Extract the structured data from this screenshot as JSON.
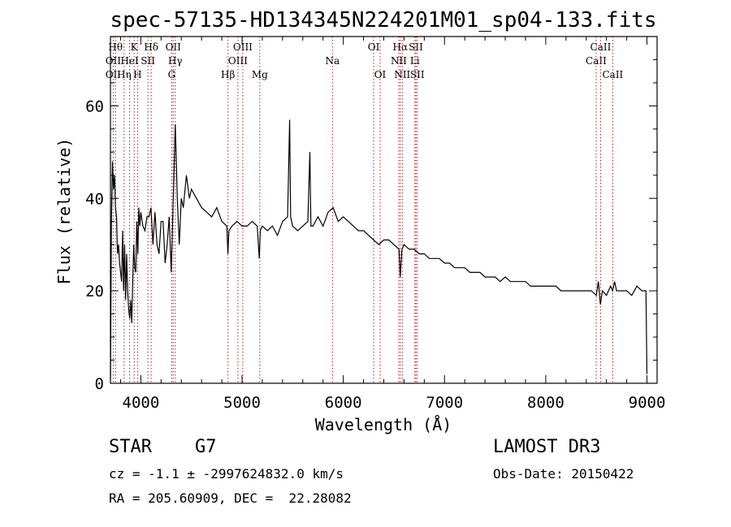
{
  "chart_data": {
    "type": "line",
    "title": "spec-57135-HD134345N224201M01_sp04-133.fits",
    "xlabel": "Wavelength (Å)",
    "ylabel": "Flux (relative)",
    "xlim": [
      3700,
      9100
    ],
    "ylim": [
      0,
      75
    ],
    "xticks": [
      4000,
      5000,
      6000,
      7000,
      8000,
      9000
    ],
    "yticks": [
      0,
      20,
      40,
      60
    ],
    "series": [
      {
        "name": "flux",
        "x": [
          3700,
          3710,
          3720,
          3730,
          3740,
          3750,
          3760,
          3770,
          3780,
          3790,
          3800,
          3810,
          3820,
          3830,
          3840,
          3850,
          3860,
          3870,
          3880,
          3890,
          3900,
          3910,
          3920,
          3930,
          3940,
          3950,
          3960,
          3970,
          3980,
          3990,
          4000,
          4020,
          4040,
          4060,
          4080,
          4100,
          4120,
          4140,
          4160,
          4180,
          4200,
          4220,
          4240,
          4260,
          4280,
          4300,
          4320,
          4340,
          4360,
          4380,
          4400,
          4420,
          4450,
          4480,
          4500,
          4550,
          4600,
          4650,
          4700,
          4750,
          4800,
          4850,
          4860,
          4870,
          4900,
          4950,
          5000,
          5050,
          5100,
          5150,
          5170,
          5180,
          5200,
          5250,
          5300,
          5350,
          5400,
          5450,
          5470,
          5480,
          5500,
          5550,
          5600,
          5650,
          5670,
          5680,
          5700,
          5750,
          5800,
          5850,
          5900,
          5950,
          6000,
          6050,
          6100,
          6150,
          6200,
          6250,
          6300,
          6350,
          6400,
          6450,
          6500,
          6550,
          6562,
          6580,
          6600,
          6650,
          6700,
          6750,
          6800,
          6850,
          6900,
          6950,
          7000,
          7050,
          7100,
          7150,
          7200,
          7250,
          7300,
          7350,
          7400,
          7450,
          7500,
          7550,
          7600,
          7650,
          7700,
          7750,
          7800,
          7850,
          7900,
          7950,
          8000,
          8050,
          8100,
          8150,
          8200,
          8250,
          8300,
          8350,
          8400,
          8450,
          8500,
          8520,
          8540,
          8560,
          8600,
          8640,
          8660,
          8680,
          8700,
          8750,
          8800,
          8850,
          8900,
          8950,
          8990,
          9000
        ],
        "y": [
          1,
          35,
          48,
          42,
          45,
          38,
          36,
          28,
          30,
          26,
          24,
          22,
          33,
          20,
          30,
          18,
          28,
          20,
          16,
          14,
          18,
          13,
          22,
          30,
          25,
          24,
          35,
          28,
          38,
          34,
          37,
          34,
          33,
          36,
          36,
          38,
          30,
          37,
          30,
          28,
          35,
          35,
          26,
          30,
          36,
          24,
          40,
          56,
          40,
          30,
          40,
          38,
          45,
          40,
          42,
          40,
          38,
          37,
          36,
          38,
          35,
          34,
          28,
          33,
          34,
          35,
          34,
          34,
          35,
          34,
          27,
          33,
          34,
          33,
          34,
          32,
          35,
          36,
          57,
          36,
          34,
          33,
          34,
          35,
          50,
          34,
          34,
          36,
          34,
          37,
          38,
          35,
          36,
          35,
          34,
          33,
          33,
          32,
          31,
          30,
          31,
          31,
          30,
          29,
          23,
          29,
          30,
          29,
          29,
          28,
          28,
          27,
          27,
          27,
          26,
          26,
          25,
          25,
          25,
          24,
          24,
          24,
          23,
          23,
          23,
          22,
          23,
          22,
          22,
          22,
          22,
          21,
          21,
          21,
          21,
          21,
          21,
          20,
          20,
          20,
          20,
          20,
          20,
          20,
          19,
          22,
          17,
          20,
          19,
          21,
          20,
          22,
          20,
          20,
          20,
          19,
          21,
          20,
          20,
          2
        ]
      }
    ],
    "lines": [
      {
        "wl": 3750,
        "label": "Hθ",
        "row": 1
      },
      {
        "wl": 3727,
        "label": "OII",
        "row": 2
      },
      {
        "wl": 3727,
        "label": "OII",
        "row": 3
      },
      {
        "wl": 3835,
        "label": "Hη",
        "row": 3
      },
      {
        "wl": 3889,
        "label": "HeI",
        "row": 2
      },
      {
        "wl": 3934,
        "label": "K",
        "row": 1
      },
      {
        "wl": 3968,
        "label": "H",
        "row": 3
      },
      {
        "wl": 4070,
        "label": "SII",
        "row": 2
      },
      {
        "wl": 4102,
        "label": "Hδ",
        "row": 1
      },
      {
        "wl": 4320,
        "label": "OII",
        "row": 1
      },
      {
        "wl": 4340,
        "label": "Hγ",
        "row": 2
      },
      {
        "wl": 4305,
        "label": "G",
        "row": 3
      },
      {
        "wl": 4861,
        "label": "Hβ",
        "row": 3
      },
      {
        "wl": 4959,
        "label": "OIII",
        "row": 2
      },
      {
        "wl": 5007,
        "label": "OIII",
        "row": 1
      },
      {
        "wl": 5175,
        "label": "Mg",
        "row": 3
      },
      {
        "wl": 5893,
        "label": "Na",
        "row": 2
      },
      {
        "wl": 6300,
        "label": "OI",
        "row": 1
      },
      {
        "wl": 6364,
        "label": "OI",
        "row": 3
      },
      {
        "wl": 6563,
        "label": "Hα",
        "row": 1
      },
      {
        "wl": 6548,
        "label": "NII",
        "row": 2
      },
      {
        "wl": 6583,
        "label": "NII",
        "row": 3
      },
      {
        "wl": 6707,
        "label": "Li",
        "row": 2
      },
      {
        "wl": 6717,
        "label": "SII",
        "row": 1
      },
      {
        "wl": 6731,
        "label": "SII",
        "row": 3
      },
      {
        "wl": 8498,
        "label": "CaII",
        "row": 2
      },
      {
        "wl": 8542,
        "label": "CaII",
        "row": 1
      },
      {
        "wl": 8662,
        "label": "CaII",
        "row": 3
      }
    ]
  },
  "info": {
    "class_line": "STAR    G7",
    "velocity": "cz = -1.1 ± -2997624832.0 km/s",
    "coords": "RA = 205.60909, DEC =  22.28082",
    "survey": "LAMOST DR3",
    "obs_date": "Obs-Date: 20150422"
  },
  "colors": {
    "line_marker": "#b22222",
    "spectrum": "#000000"
  }
}
